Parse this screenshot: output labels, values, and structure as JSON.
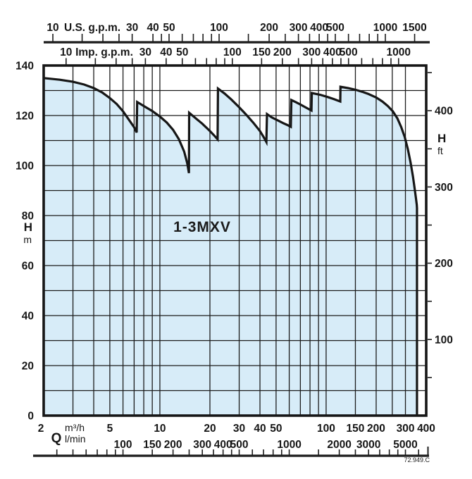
{
  "title_label": "1-3MXV",
  "ref_code": "72.949.C",
  "colors": {
    "envelope_fill": "#d7ecf8",
    "line": "#161616",
    "grid": "#1c1c1c",
    "background": "#ffffff"
  },
  "chart_data": {
    "type": "area",
    "title": "1-3MXV",
    "x_scale": "log",
    "x_min_m3h": 2,
    "x_max_m3h": 400,
    "y_min_m": 0,
    "y_max_m": 140,
    "grid": "on",
    "axis_m3h": {
      "labels": [
        2,
        5,
        10,
        20,
        30,
        40,
        50,
        100,
        150,
        200,
        300,
        400
      ],
      "gridlines": [
        3,
        4,
        5,
        6,
        7,
        8,
        9,
        10,
        20,
        30,
        40,
        50,
        60,
        70,
        80,
        90,
        100,
        150,
        200,
        250,
        300
      ]
    },
    "axis_lmin": {
      "labels": [
        100,
        150,
        200,
        300,
        400,
        500,
        1000,
        2000,
        3000,
        5000
      ],
      "ticks": [
        40,
        50,
        60,
        70,
        80,
        90,
        100,
        150,
        200,
        250,
        300,
        350,
        400,
        450,
        500,
        600,
        700,
        800,
        900,
        1000,
        1500,
        2000,
        2500,
        3000,
        3500,
        4000,
        4500,
        5000,
        6000
      ],
      "per_m3h": 16.6667
    },
    "axis_usgpm": {
      "unit_label": "U.S. g.p.m.",
      "labels": [
        10,
        30,
        40,
        50,
        100,
        200,
        300,
        400,
        500,
        1000,
        1500
      ],
      "ticks": [
        10,
        15,
        20,
        25,
        30,
        40,
        45,
        50,
        60,
        70,
        80,
        90,
        100,
        150,
        200,
        250,
        300,
        350,
        400,
        450,
        500,
        600,
        700,
        800,
        900,
        1000,
        1500
      ],
      "per_m3h": 4.4029
    },
    "axis_impgpm": {
      "unit_label": "Imp. g.p.m.",
      "labels": [
        10,
        30,
        40,
        50,
        100,
        150,
        200,
        300,
        400,
        500,
        1000
      ],
      "ticks": [
        10,
        15,
        20,
        25,
        30,
        40,
        50,
        60,
        70,
        80,
        90,
        100,
        150,
        200,
        250,
        300,
        350,
        400,
        450,
        500,
        600,
        700,
        800,
        900,
        1000
      ],
      "per_m3h": 3.66615
    },
    "axis_h_m": {
      "symbol": "H",
      "unit": "m",
      "labels": [
        0,
        20,
        40,
        60,
        80,
        100,
        120,
        140
      ],
      "gridline_step": 10
    },
    "axis_h_ft": {
      "symbol": "H",
      "unit": "ft",
      "labels": [
        100,
        200,
        300,
        400
      ],
      "tick_step": 50,
      "tick_max": 450,
      "m_per_ft": 0.3048
    },
    "flow_symbol": "Q",
    "flow_unit_top": "m³/h",
    "flow_unit_bottom": "l/min",
    "envelope_QH": [
      [
        2,
        135
      ],
      [
        2.5,
        134.3
      ],
      [
        3,
        133.5
      ],
      [
        3.5,
        132.4
      ],
      [
        4,
        131
      ],
      [
        4.5,
        129.2
      ],
      [
        5,
        127
      ],
      [
        5.5,
        124.6
      ],
      [
        6,
        121.7
      ],
      [
        6.5,
        118.4
      ],
      [
        7,
        115.3
      ],
      [
        7.25,
        113.2
      ],
      [
        7.3,
        125.4
      ],
      [
        8,
        123.8
      ],
      [
        9,
        121.8
      ],
      [
        10,
        119.6
      ],
      [
        11,
        117.2
      ],
      [
        12,
        114.3
      ],
      [
        13,
        110.6
      ],
      [
        14,
        105.6
      ],
      [
        14.6,
        101
      ],
      [
        14.95,
        97
      ],
      [
        15,
        121.1
      ],
      [
        16.5,
        118.8
      ],
      [
        18,
        116.7
      ],
      [
        20,
        113.8
      ],
      [
        21.5,
        111.6
      ],
      [
        22.25,
        110.5
      ],
      [
        22.35,
        130.8
      ],
      [
        24.5,
        128.8
      ],
      [
        27,
        126.3
      ],
      [
        30,
        123.3
      ],
      [
        33,
        120.4
      ],
      [
        36.5,
        117.1
      ],
      [
        40,
        113.8
      ],
      [
        42,
        111.5
      ],
      [
        43.7,
        109.4
      ],
      [
        44.1,
        120.6
      ],
      [
        47,
        119.3
      ],
      [
        51,
        118.1
      ],
      [
        55,
        117
      ],
      [
        58.5,
        116.2
      ],
      [
        61.3,
        115.5
      ],
      [
        61.8,
        126.2
      ],
      [
        66,
        125.3
      ],
      [
        71,
        124.2
      ],
      [
        76,
        123.1
      ],
      [
        81.6,
        122
      ],
      [
        82,
        129
      ],
      [
        92,
        128.3
      ],
      [
        102,
        127.4
      ],
      [
        112,
        126.5
      ],
      [
        121.6,
        125.6
      ],
      [
        122,
        131.5
      ],
      [
        135,
        131
      ],
      [
        150,
        130.3
      ],
      [
        165,
        129.5
      ],
      [
        180,
        128.6
      ],
      [
        200,
        127.2
      ],
      [
        218,
        125.6
      ],
      [
        235,
        123.8
      ],
      [
        252,
        121.7
      ],
      [
        268,
        118.9
      ],
      [
        283,
        115.4
      ],
      [
        297,
        111.4
      ],
      [
        310,
        106.6
      ],
      [
        322,
        101.2
      ],
      [
        333,
        95.6
      ],
      [
        341,
        90.8
      ],
      [
        347,
        87
      ],
      [
        351,
        84.3
      ],
      [
        352,
        83
      ],
      [
        352,
        0
      ]
    ]
  }
}
